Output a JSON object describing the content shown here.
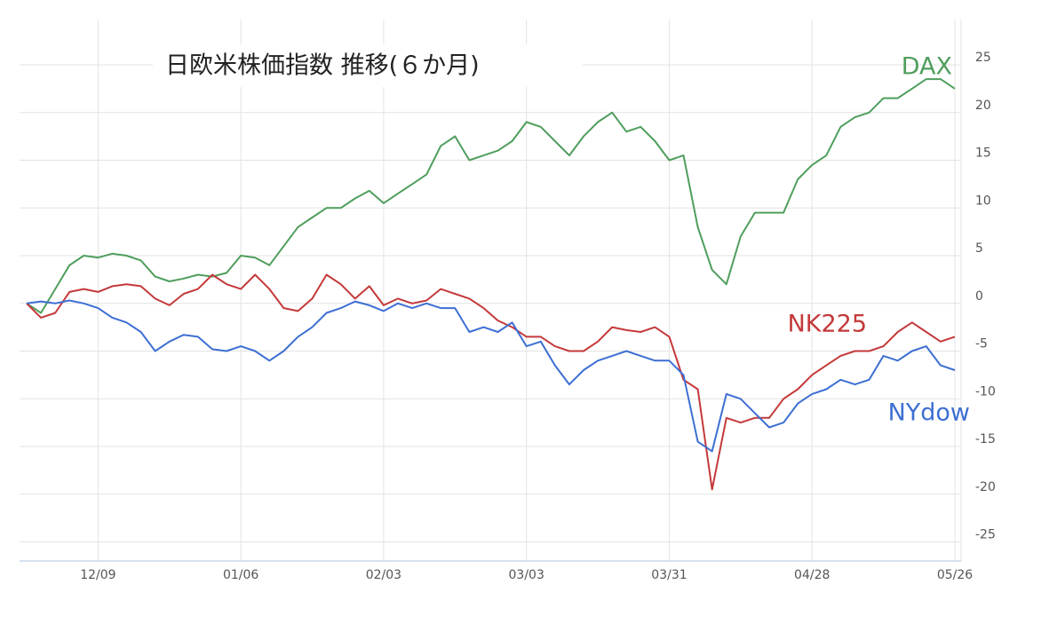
{
  "chart_data": {
    "type": "line",
    "title": "日欧米株価指数 推移(６か月)",
    "categories": [
      null,
      null,
      null,
      null,
      null,
      "12/09",
      null,
      null,
      null,
      null,
      null,
      null,
      null,
      null,
      null,
      "01/06",
      null,
      null,
      null,
      null,
      null,
      null,
      null,
      null,
      null,
      "02/03",
      null,
      null,
      null,
      null,
      null,
      null,
      null,
      null,
      null,
      "03/03",
      null,
      null,
      null,
      null,
      null,
      null,
      null,
      null,
      null,
      "03/31",
      null,
      null,
      null,
      null,
      null,
      null,
      null,
      null,
      null,
      "04/28",
      null,
      null,
      null,
      null,
      null,
      null,
      null,
      null,
      null,
      "05/26"
    ],
    "series": [
      {
        "name": "DAX",
        "color": "#4f9e5c",
        "values": [
          0,
          -1,
          1.5,
          4,
          5,
          4.8,
          5.2,
          5,
          4.5,
          2.8,
          2.3,
          2.6,
          3,
          2.8,
          3.2,
          5,
          4.8,
          4,
          6,
          8,
          9,
          10,
          10,
          11,
          11.8,
          10.5,
          11.5,
          12.5,
          13.5,
          16.5,
          17.5,
          15,
          15.5,
          16,
          17,
          19,
          18.5,
          17,
          15.5,
          17.5,
          19,
          20,
          18,
          18.5,
          17,
          15,
          15.5,
          8,
          3.5,
          2,
          7,
          9.5,
          9.5,
          9.5,
          13,
          14.5,
          15.5,
          18.5,
          19.5,
          20,
          21.5,
          21.5,
          22.5,
          23.5,
          23.5,
          22.5
        ]
      },
      {
        "name": "NK225",
        "color": "#c4393a",
        "values": [
          0,
          -1.5,
          -1,
          1.2,
          1.5,
          1.2,
          1.8,
          2,
          1.8,
          0.5,
          -0.2,
          1,
          1.5,
          3,
          2,
          1.5,
          3,
          1.5,
          -0.5,
          -0.8,
          0.5,
          3,
          2,
          0.5,
          1.8,
          -0.2,
          0.5,
          0,
          0.3,
          1.5,
          1,
          0.5,
          -0.5,
          -1.8,
          -2.5,
          -3.5,
          -3.5,
          -4.5,
          -5,
          -5,
          -4,
          -2.5,
          -2.8,
          -3,
          -2.5,
          -3.5,
          -8,
          -9,
          -19.5,
          -12,
          -12.5,
          -12,
          -12,
          -10,
          -9,
          -7.5,
          -6.5,
          -5.5,
          -5,
          -5,
          -4.5,
          -3,
          -2,
          -3,
          -4,
          -3.5
        ]
      },
      {
        "name": "NYdow",
        "color": "#3d6fd3",
        "values": [
          0,
          0.2,
          0,
          0.3,
          0,
          -0.5,
          -1.5,
          -2,
          -3,
          -5,
          -4,
          -3.3,
          -3.5,
          -4.8,
          -5,
          -4.5,
          -5,
          -6,
          -5,
          -3.5,
          -2.5,
          -1,
          -0.5,
          0.2,
          -0.2,
          -0.8,
          0,
          -0.5,
          0,
          -0.5,
          -0.5,
          -3,
          -2.5,
          -3,
          -2,
          -4.5,
          -4,
          -6.5,
          -8.5,
          -7,
          -6,
          -5.5,
          -5,
          -5.5,
          -6,
          -6,
          -7.5,
          -14.5,
          -15.5,
          -9.5,
          -10,
          -11.5,
          -13,
          -12.5,
          -10.5,
          -9.5,
          -9,
          -8,
          -8.5,
          -8,
          -5.5,
          -6,
          -5,
          -4.5,
          -6.5,
          -7
        ]
      }
    ],
    "ylim": [
      -27,
      29
    ],
    "yticks": [
      -25,
      -20,
      -15,
      -10,
      -5,
      0,
      5,
      10,
      15,
      20,
      25
    ],
    "grid": true,
    "y_axis_side": "right"
  }
}
